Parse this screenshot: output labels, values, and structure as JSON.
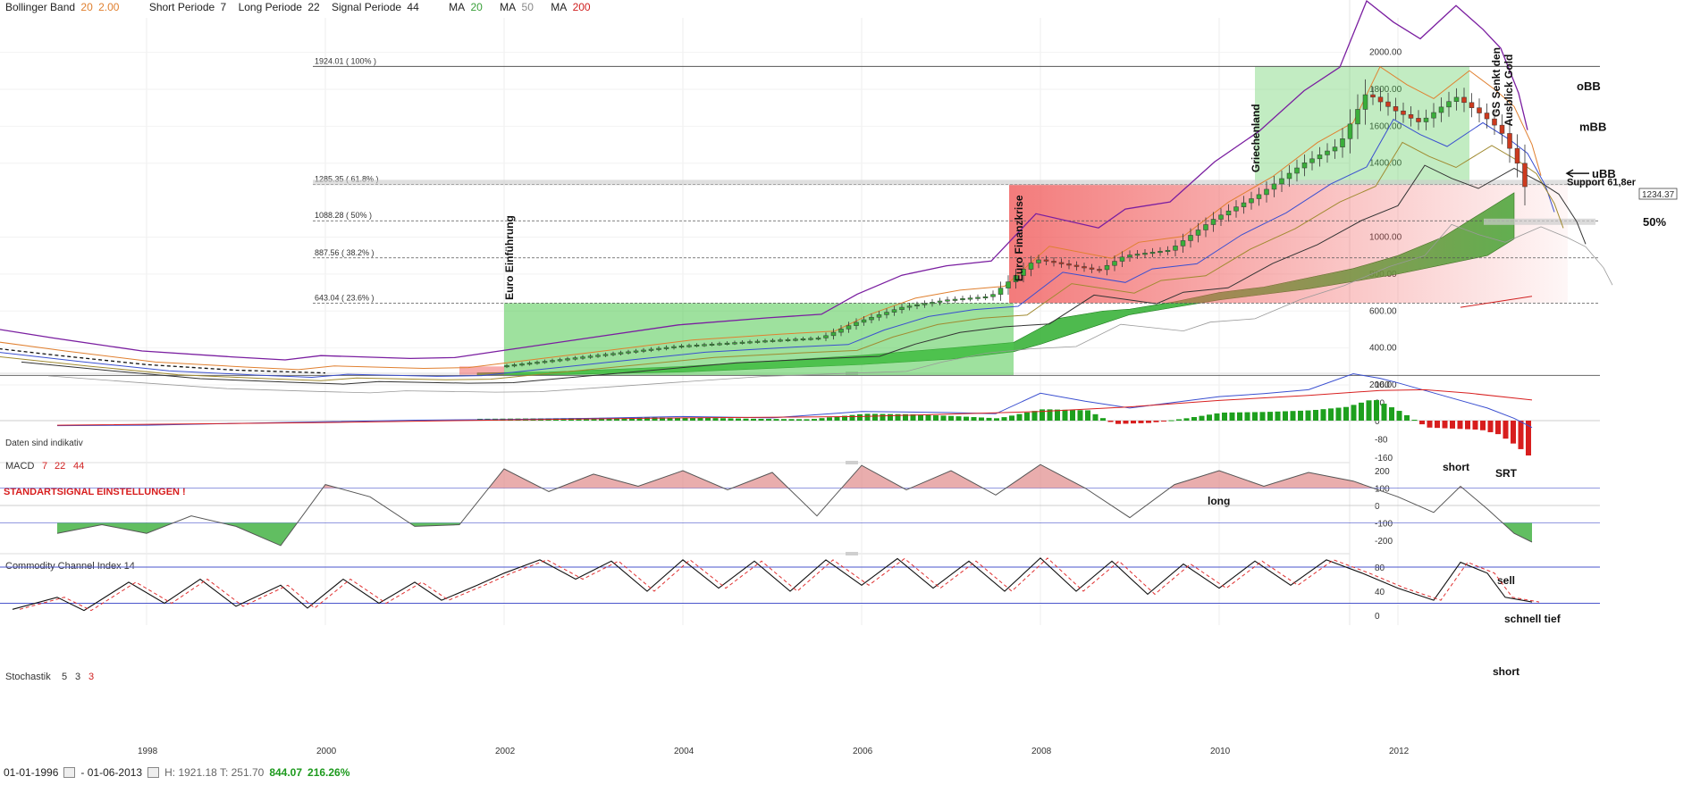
{
  "header": {
    "bb_label": "Bollinger Band",
    "bb_period": "20",
    "bb_dev": "2.00",
    "short_label": "Short Periode",
    "short_val": "7",
    "long_label": "Long Periode",
    "long_val": "22",
    "signal_label": "Signal Periode",
    "signal_val": "44",
    "ma_label": "MA",
    "ma1": "20",
    "ma2": "50",
    "ma3": "200"
  },
  "footer": {
    "start_date": "01-01-1996",
    "end_date": "- 01-06-2013",
    "hl_text": "H: 1921.18  T: 251.70",
    "change_abs": "844.07",
    "change_pct": "216.26%",
    "disclaimer": "Daten sind indikativ"
  },
  "colors": {
    "green_fill": "#4fc94f",
    "red_fill": "#f05a5a",
    "macd_up": "#1ea01e",
    "macd_down": "#d81e1e",
    "purple": "#7a1ea0",
    "blue": "#3a4fd0",
    "orange": "#e08030",
    "olive": "#a08a30",
    "stoch_dash": "#e03030",
    "level_line": "#4a55cc"
  },
  "chart_data": [
    {
      "type": "candlestick",
      "title": "",
      "x_ticks": [
        "1998",
        "2000",
        "2002",
        "2004",
        "2006",
        "2008",
        "2010",
        "2012"
      ],
      "y_ticks": [
        "2000.00",
        "1800.00",
        "1600.00",
        "1400.00",
        "1000.00",
        "800.00",
        "600.00",
        "400.00",
        "200.00"
      ],
      "ylim": [
        160,
        2060
      ],
      "last_price": "1234.37",
      "fib_levels": [
        {
          "label": "1924.01 ( 100% )",
          "value": 1924.01
        },
        {
          "label": "1285.35 ( 61.8% )",
          "value": 1285.35
        },
        {
          "label": "1088.28 ( 50% )",
          "value": 1088.28
        },
        {
          "label": "887.56 ( 38.2% )",
          "value": 887.56
        },
        {
          "label": "643.04 ( 23.6% )",
          "value": 643.04
        }
      ],
      "low_level": 251.7,
      "annotations": {
        "euro_einfuehrung": "Euro Einführung",
        "euro_finanzkrise": "Euro Finanzkrise",
        "griechenland": "Griechenland",
        "gs_senkt": "GS Senkt den",
        "ausblick_gold": "Ausblick Gold",
        "obb": "oBB",
        "mbb": "mBB",
        "ubb": "uBB",
        "support": "Support 61,8er",
        "fifty": "50%"
      },
      "price_series": [
        [
          1996.0,
          415
        ],
        [
          1997.0,
          355
        ],
        [
          1998.0,
          300
        ],
        [
          1999.0,
          275
        ],
        [
          1999.6,
          262
        ],
        [
          2000.0,
          280
        ],
        [
          2001.0,
          268
        ],
        [
          2001.5,
          272
        ],
        [
          2002.0,
          300
        ],
        [
          2003.0,
          355
        ],
        [
          2004.0,
          410
        ],
        [
          2005.0,
          440
        ],
        [
          2005.6,
          455
        ],
        [
          2006.0,
          540
        ],
        [
          2006.5,
          620
        ],
        [
          2007.0,
          660
        ],
        [
          2007.5,
          680
        ],
        [
          2008.0,
          880
        ],
        [
          2008.7,
          820
        ],
        [
          2009.0,
          900
        ],
        [
          2009.5,
          930
        ],
        [
          2010.0,
          1100
        ],
        [
          2010.5,
          1230
        ],
        [
          2011.0,
          1400
        ],
        [
          2011.4,
          1500
        ],
        [
          2011.7,
          1780
        ],
        [
          2012.0,
          1690
        ],
        [
          2012.3,
          1620
        ],
        [
          2012.7,
          1760
        ],
        [
          2013.0,
          1660
        ],
        [
          2013.2,
          1580
        ],
        [
          2013.4,
          1390
        ],
        [
          2013.5,
          1234
        ]
      ]
    },
    {
      "type": "bar",
      "title": "MACD",
      "params": [
        "7",
        "22",
        "44"
      ],
      "note": "STANDARTSIGNAL EINSTELLUNGEN !",
      "y_ticks": [
        "160",
        "80",
        "0",
        "-80",
        "-160"
      ],
      "ylim": [
        -180,
        180
      ],
      "labels": {
        "short": "short",
        "srt": "SRT",
        "long": "long"
      },
      "macd_line": [
        [
          1997.0,
          -22
        ],
        [
          1998.0,
          -20
        ],
        [
          1999.0,
          -12
        ],
        [
          2000.0,
          -5
        ],
        [
          2001.0,
          2
        ],
        [
          2002.0,
          5
        ],
        [
          2003.0,
          10
        ],
        [
          2004.0,
          18
        ],
        [
          2005.0,
          12
        ],
        [
          2006.0,
          40
        ],
        [
          2007.0,
          35
        ],
        [
          2007.5,
          30
        ],
        [
          2008.0,
          120
        ],
        [
          2008.5,
          85
        ],
        [
          2009.0,
          55
        ],
        [
          2009.5,
          80
        ],
        [
          2010.0,
          105
        ],
        [
          2010.5,
          118
        ],
        [
          2011.0,
          135
        ],
        [
          2011.5,
          205
        ],
        [
          2011.8,
          185
        ],
        [
          2012.0,
          165
        ],
        [
          2012.5,
          110
        ],
        [
          2013.0,
          55
        ],
        [
          2013.3,
          10
        ],
        [
          2013.5,
          -30
        ]
      ],
      "signal_line": [
        [
          1997.0,
          -20
        ],
        [
          2000.0,
          -8
        ],
        [
          2002.0,
          3
        ],
        [
          2004.0,
          12
        ],
        [
          2006.0,
          18
        ],
        [
          2008.0,
          40
        ],
        [
          2009.0,
          60
        ],
        [
          2010.0,
          88
        ],
        [
          2011.0,
          110
        ],
        [
          2011.8,
          132
        ],
        [
          2012.3,
          135
        ],
        [
          2012.8,
          120
        ],
        [
          2013.5,
          90
        ]
      ],
      "histogram": [
        [
          2001.7,
          8
        ],
        [
          2002.4,
          10
        ],
        [
          2003.0,
          12
        ],
        [
          2003.6,
          14
        ],
        [
          2004.2,
          12
        ],
        [
          2004.8,
          8
        ],
        [
          2005.4,
          6
        ],
        [
          2006.0,
          30
        ],
        [
          2006.5,
          28
        ],
        [
          2007.0,
          20
        ],
        [
          2007.5,
          10
        ],
        [
          2008.0,
          50
        ],
        [
          2008.5,
          45
        ],
        [
          2008.8,
          -15
        ],
        [
          2009.2,
          -10
        ],
        [
          2009.6,
          10
        ],
        [
          2010.0,
          35
        ],
        [
          2010.5,
          38
        ],
        [
          2011.0,
          45
        ],
        [
          2011.4,
          60
        ],
        [
          2011.7,
          95
        ],
        [
          2012.0,
          40
        ],
        [
          2012.3,
          -30
        ],
        [
          2012.6,
          -35
        ],
        [
          2012.9,
          -40
        ],
        [
          2013.1,
          -60
        ],
        [
          2013.3,
          -110
        ],
        [
          2013.5,
          -175
        ]
      ]
    },
    {
      "type": "line",
      "title": "Commodity Channel Index",
      "params": [
        "14"
      ],
      "y_ticks": [
        "200",
        "100",
        "0",
        "-100",
        "-200"
      ],
      "ylim": [
        -230,
        230
      ],
      "levels": [
        100,
        -100
      ],
      "labels": {
        "sell": "sell",
        "schnell_tief": "schnell tief"
      },
      "series": [
        [
          1997.0,
          -160
        ],
        [
          1997.5,
          -110
        ],
        [
          1998.0,
          -160
        ],
        [
          1998.5,
          -60
        ],
        [
          1999.0,
          -120
        ],
        [
          1999.5,
          -230
        ],
        [
          2000.0,
          120
        ],
        [
          2000.5,
          50
        ],
        [
          2001.0,
          -120
        ],
        [
          2001.5,
          -110
        ],
        [
          2002.0,
          210
        ],
        [
          2002.5,
          80
        ],
        [
          2003.0,
          180
        ],
        [
          2003.5,
          110
        ],
        [
          2004.0,
          200
        ],
        [
          2004.5,
          90
        ],
        [
          2005.0,
          190
        ],
        [
          2005.5,
          -60
        ],
        [
          2006.0,
          230
        ],
        [
          2006.5,
          90
        ],
        [
          2007.0,
          200
        ],
        [
          2007.5,
          60
        ],
        [
          2008.0,
          235
        ],
        [
          2008.5,
          100
        ],
        [
          2009.0,
          -70
        ],
        [
          2009.5,
          120
        ],
        [
          2010.0,
          200
        ],
        [
          2010.5,
          110
        ],
        [
          2011.0,
          190
        ],
        [
          2011.5,
          140
        ],
        [
          2012.0,
          50
        ],
        [
          2012.4,
          -40
        ],
        [
          2012.7,
          110
        ],
        [
          2013.0,
          -20
        ],
        [
          2013.3,
          -160
        ],
        [
          2013.5,
          -210
        ]
      ]
    },
    {
      "type": "line",
      "title": "Stochastik",
      "params": [
        "5",
        "3",
        "3"
      ],
      "y_ticks": [
        "80",
        "40",
        "0"
      ],
      "ylim": [
        -2,
        100
      ],
      "levels": [
        80,
        20
      ],
      "labels": {
        "short": "short"
      },
      "series": [
        [
          1996.5,
          10
        ],
        [
          1997.0,
          30
        ],
        [
          1997.3,
          8
        ],
        [
          1997.8,
          55
        ],
        [
          1998.2,
          20
        ],
        [
          1998.6,
          60
        ],
        [
          1999.0,
          15
        ],
        [
          1999.5,
          50
        ],
        [
          1999.8,
          12
        ],
        [
          2000.2,
          60
        ],
        [
          2000.6,
          20
        ],
        [
          2001.0,
          55
        ],
        [
          2001.3,
          25
        ],
        [
          2001.7,
          50
        ],
        [
          2002.0,
          70
        ],
        [
          2002.4,
          92
        ],
        [
          2002.8,
          60
        ],
        [
          2003.2,
          90
        ],
        [
          2003.6,
          40
        ],
        [
          2004.0,
          92
        ],
        [
          2004.4,
          45
        ],
        [
          2004.8,
          90
        ],
        [
          2005.2,
          40
        ],
        [
          2005.6,
          92
        ],
        [
          2006.0,
          50
        ],
        [
          2006.4,
          94
        ],
        [
          2006.8,
          45
        ],
        [
          2007.2,
          90
        ],
        [
          2007.6,
          40
        ],
        [
          2008.0,
          95
        ],
        [
          2008.4,
          40
        ],
        [
          2008.8,
          90
        ],
        [
          2009.2,
          35
        ],
        [
          2009.6,
          85
        ],
        [
          2010.0,
          45
        ],
        [
          2010.4,
          90
        ],
        [
          2010.8,
          50
        ],
        [
          2011.2,
          92
        ],
        [
          2011.6,
          70
        ],
        [
          2012.0,
          45
        ],
        [
          2012.4,
          25
        ],
        [
          2012.7,
          88
        ],
        [
          2013.0,
          70
        ],
        [
          2013.2,
          30
        ],
        [
          2013.5,
          22
        ]
      ]
    }
  ]
}
